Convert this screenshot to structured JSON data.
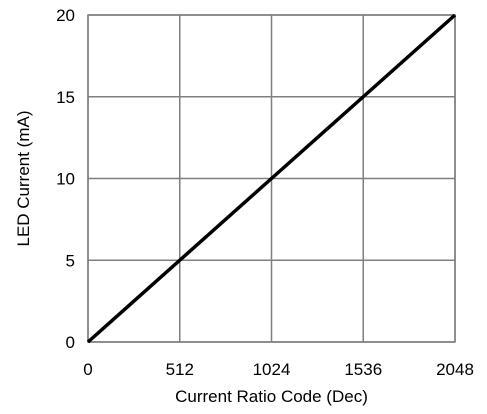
{
  "chart_data": {
    "type": "line",
    "title": "",
    "xlabel": "Current Ratio Code (Dec)",
    "ylabel": "LED Current (mA)",
    "xlim": [
      0,
      2048
    ],
    "ylim": [
      0,
      20
    ],
    "xticks": [
      "0",
      "512",
      "1024",
      "1536",
      "2048"
    ],
    "yticks": [
      "0",
      "5",
      "10",
      "15",
      "20"
    ],
    "grid": true,
    "legend": "none",
    "series": [
      {
        "x": [
          0,
          512,
          1024,
          1536,
          2048
        ],
        "y": [
          0,
          5,
          10,
          15,
          20
        ],
        "color": "#000000"
      }
    ]
  }
}
